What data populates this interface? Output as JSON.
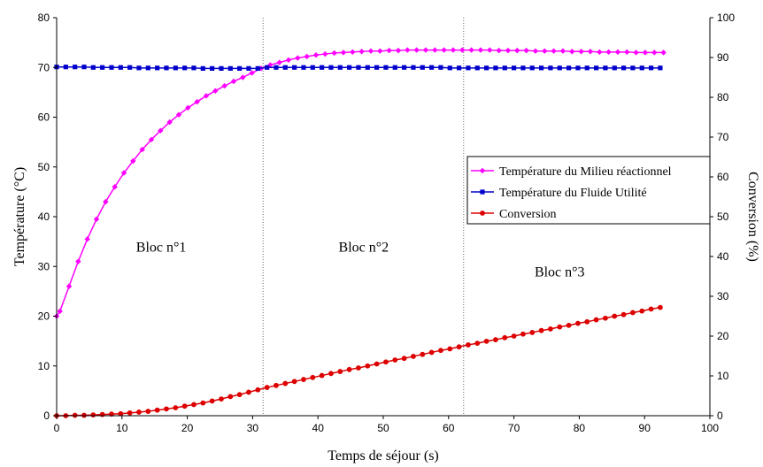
{
  "chart_data": {
    "type": "line",
    "title": "",
    "xlabel": "Temps de séjour (s)",
    "ylabel_left": "Température (°C)",
    "ylabel_right": "Conversion (%)",
    "xlim": [
      0,
      100
    ],
    "ylim_left": [
      0,
      80
    ],
    "ylim_right": [
      0,
      100
    ],
    "x_ticks": [
      0,
      10,
      20,
      30,
      40,
      50,
      60,
      70,
      80,
      90,
      100
    ],
    "y_left_ticks": [
      0,
      10,
      20,
      30,
      40,
      50,
      60,
      70,
      80
    ],
    "y_right_ticks": [
      0,
      10,
      20,
      30,
      40,
      50,
      60,
      70,
      80,
      90,
      100
    ],
    "grid": false,
    "legend_position": "middle-right",
    "block_boundaries": [
      31.6,
      62.3
    ],
    "blocks": [
      {
        "label": "Bloc n°1",
        "x": 16,
        "y": 33
      },
      {
        "label": "Bloc n°2",
        "x": 47,
        "y": 33
      },
      {
        "label": "Bloc n°3",
        "x": 77,
        "y": 28
      }
    ],
    "series": [
      {
        "name": "Température du Milieu réactionnel",
        "axis": "left",
        "color": "#ff00ff",
        "marker": "diamond",
        "x": [
          0,
          0.5,
          1.9,
          3.3,
          4.7,
          6.1,
          7.5,
          8.9,
          10.3,
          11.7,
          13.1,
          14.5,
          15.9,
          17.3,
          18.7,
          20.1,
          21.5,
          22.9,
          24.3,
          25.7,
          27.1,
          28.5,
          29.9,
          31.3,
          32.7,
          34.1,
          35.5,
          36.9,
          38.3,
          39.7,
          41.1,
          42.5,
          43.9,
          45.3,
          46.7,
          48.1,
          49.5,
          50.9,
          52.3,
          53.7,
          55.1,
          56.5,
          57.9,
          59.3,
          60.7,
          62.1,
          63.5,
          64.9,
          66.3,
          67.7,
          69.1,
          70.5,
          71.9,
          73.3,
          74.7,
          76.1,
          77.5,
          78.9,
          80.3,
          81.7,
          83.1,
          84.5,
          85.9,
          87.3,
          88.7,
          90.1,
          91.5,
          92.9
        ],
        "values": [
          20,
          21,
          26,
          31,
          35.5,
          39.5,
          43,
          46,
          48.8,
          51.2,
          53.5,
          55.5,
          57.3,
          59,
          60.5,
          61.9,
          63.1,
          64.3,
          65.3,
          66.3,
          67.2,
          68,
          68.9,
          69.8,
          70.5,
          71,
          71.5,
          71.9,
          72.2,
          72.5,
          72.7,
          72.9,
          73,
          73.1,
          73.2,
          73.3,
          73.3,
          73.4,
          73.4,
          73.5,
          73.5,
          73.5,
          73.5,
          73.5,
          73.5,
          73.5,
          73.5,
          73.5,
          73.5,
          73.4,
          73.4,
          73.4,
          73.4,
          73.3,
          73.3,
          73.3,
          73.3,
          73.2,
          73.2,
          73.2,
          73.1,
          73.1,
          73.1,
          73.1,
          73,
          73,
          73,
          73
        ]
      },
      {
        "name": "Température du Fluide Utilité",
        "axis": "left",
        "color": "#0000cc",
        "marker": "square",
        "x": [
          0,
          1.4,
          2.8,
          4.2,
          5.6,
          7,
          8.4,
          9.8,
          11.2,
          12.6,
          14,
          15.4,
          16.8,
          18.2,
          19.6,
          21,
          22.4,
          23.8,
          25.2,
          26.6,
          28,
          29.4,
          30.8,
          32.2,
          33.6,
          35,
          36.4,
          37.8,
          39.2,
          40.6,
          42,
          43.4,
          44.8,
          46.2,
          47.6,
          49,
          50.4,
          51.8,
          53.2,
          54.6,
          56,
          57.4,
          58.8,
          60.2,
          61.6,
          63,
          64.4,
          65.8,
          67.2,
          68.6,
          70,
          71.4,
          72.8,
          74.2,
          75.6,
          77,
          78.4,
          79.8,
          81.2,
          82.6,
          84,
          85.4,
          86.8,
          88.2,
          89.6,
          91,
          92.4
        ],
        "values": [
          70.1,
          70.1,
          70.1,
          70.1,
          70,
          70,
          70,
          70,
          70,
          69.9,
          69.9,
          69.9,
          69.9,
          69.9,
          69.9,
          69.9,
          69.8,
          69.8,
          69.8,
          69.8,
          69.8,
          69.8,
          69.8,
          70,
          70,
          70,
          70,
          70,
          70,
          70,
          70,
          70,
          70,
          70,
          70,
          70,
          70,
          70,
          70,
          70,
          70,
          70,
          70,
          69.9,
          69.9,
          69.9,
          69.9,
          69.9,
          69.9,
          69.9,
          69.9,
          69.9,
          69.9,
          69.9,
          69.9,
          69.9,
          69.9,
          69.9,
          69.9,
          69.9,
          69.9,
          69.9,
          69.9,
          69.9,
          69.9,
          69.9,
          69.9
        ]
      },
      {
        "name": "Conversion",
        "axis": "right",
        "color": "#dd0000",
        "marker": "circle",
        "x": [
          0,
          1.4,
          2.8,
          4.2,
          5.6,
          7,
          8.4,
          9.8,
          11.2,
          12.6,
          14,
          15.4,
          16.8,
          18.2,
          19.6,
          21,
          22.4,
          23.8,
          25.2,
          26.6,
          28,
          29.4,
          30.8,
          32.2,
          33.6,
          35,
          36.4,
          37.8,
          39.2,
          40.6,
          42,
          43.4,
          44.8,
          46.2,
          47.6,
          49,
          50.4,
          51.8,
          53.2,
          54.6,
          56,
          57.4,
          58.8,
          60.2,
          61.6,
          63,
          64.4,
          65.8,
          67.2,
          68.6,
          70,
          71.4,
          72.8,
          74.2,
          75.6,
          77,
          78.4,
          79.8,
          81.2,
          82.6,
          84,
          85.4,
          86.8,
          88.2,
          89.6,
          91,
          92.4
        ],
        "values": [
          0,
          0,
          0.1,
          0.1,
          0.2,
          0.3,
          0.4,
          0.5,
          0.7,
          0.9,
          1.1,
          1.4,
          1.7,
          2,
          2.4,
          2.8,
          3.2,
          3.7,
          4.2,
          4.8,
          5.3,
          5.9,
          6.5,
          7.1,
          7.6,
          8.1,
          8.6,
          9.1,
          9.6,
          10.1,
          10.6,
          11.1,
          11.6,
          12,
          12.5,
          13,
          13.5,
          14,
          14.4,
          14.9,
          15.4,
          15.9,
          16.4,
          16.8,
          17.3,
          17.8,
          18.2,
          18.7,
          19.1,
          19.6,
          20,
          20.5,
          20.9,
          21.4,
          21.8,
          22.3,
          22.7,
          23.2,
          23.6,
          24.1,
          24.5,
          25,
          25.4,
          25.9,
          26.3,
          26.8,
          27.2
        ]
      }
    ]
  }
}
